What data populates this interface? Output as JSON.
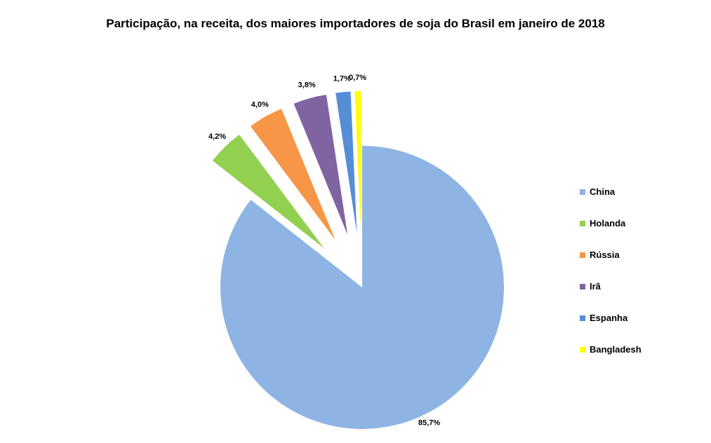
{
  "chart_data": {
    "type": "pie",
    "title": "Participação, na receita, dos maiores importadores de soja do Brasil em janeiro de 2018",
    "categories": [
      "China",
      "Holanda",
      "Rússia",
      "Irã",
      "Espanha",
      "Bangladesh"
    ],
    "values": [
      85.7,
      4.2,
      4.0,
      3.8,
      1.7,
      0.7
    ],
    "data_labels": [
      "85,7%",
      "4,2%",
      "4,0%",
      "3,8%",
      "1,7%",
      "0,7%"
    ],
    "colors": [
      "#8EB4E3",
      "#92D050",
      "#F79646",
      "#8064A2",
      "#558ED5",
      "#FFFF00"
    ],
    "legend_position": "right",
    "exploded": true,
    "unit": "%"
  }
}
